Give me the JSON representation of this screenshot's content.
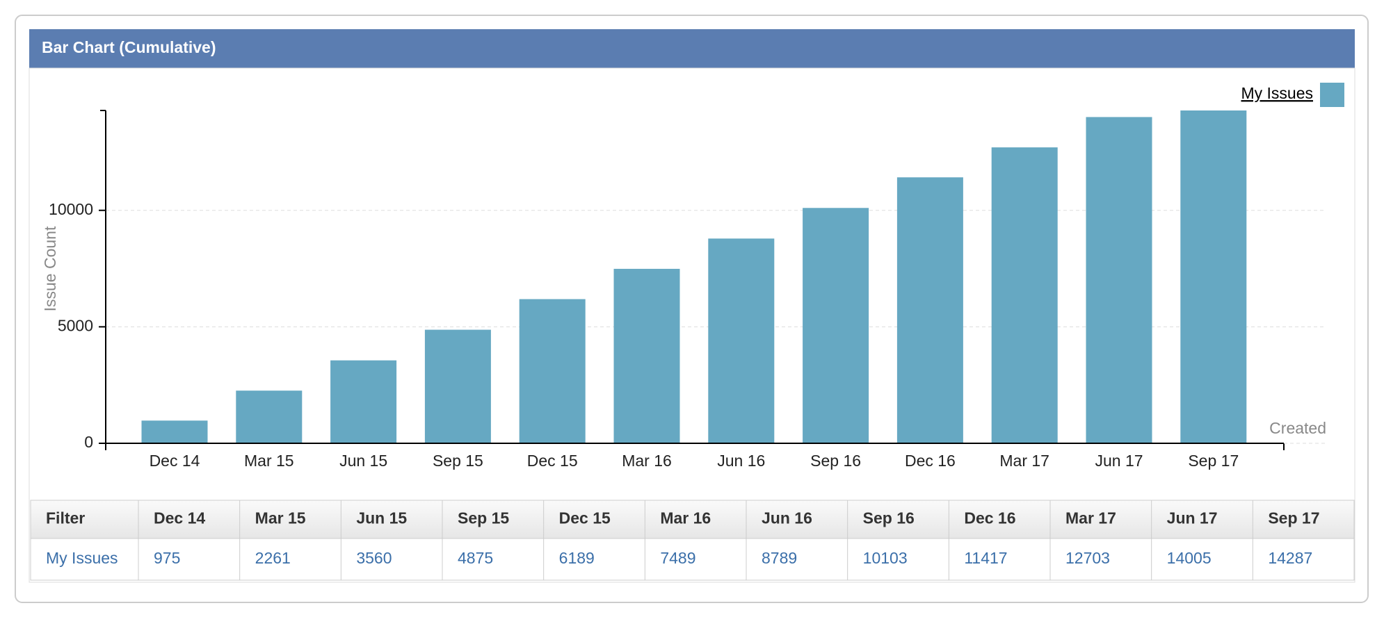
{
  "chart_data": {
    "type": "bar",
    "title": "Bar Chart (Cumulative)",
    "x_label": "Created",
    "y_label": "Issue Count",
    "categories": [
      "Dec 14",
      "Mar 15",
      "Jun 15",
      "Sep 15",
      "Dec 15",
      "Mar 16",
      "Jun 16",
      "Sep 16",
      "Dec 16",
      "Mar 17",
      "Jun 17",
      "Sep 17"
    ],
    "series": [
      {
        "name": "My Issues",
        "color": "#66a8c2",
        "values": [
          975,
          2261,
          3560,
          4875,
          6189,
          7489,
          8789,
          10103,
          11417,
          12703,
          14005,
          14287
        ]
      }
    ],
    "ylim": [
      0,
      14287
    ],
    "yticks": [
      0,
      5000,
      10000
    ],
    "grid": true,
    "legend": "top-right"
  },
  "table": {
    "header": "Filter"
  }
}
